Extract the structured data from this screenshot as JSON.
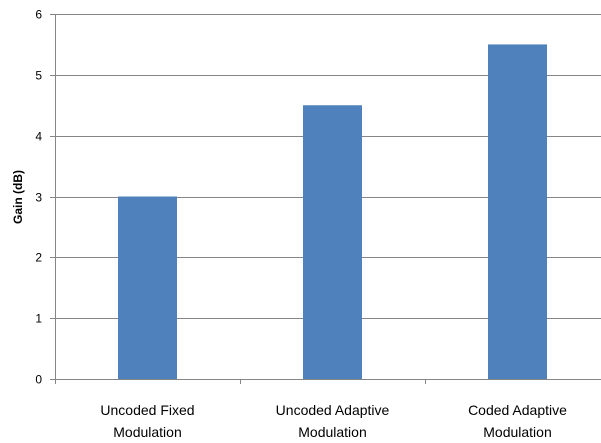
{
  "chart_data": {
    "type": "bar",
    "title": "",
    "xlabel": "",
    "ylabel": "Gain (dB)",
    "categories": [
      [
        "Uncoded Fixed",
        "Modulation"
      ],
      [
        "Uncoded Adaptive",
        "Modulation"
      ],
      [
        "Coded Adaptive",
        "Modulation"
      ]
    ],
    "values": [
      3,
      4.5,
      5.5
    ],
    "ylim": [
      0,
      6
    ],
    "yticks": [
      0,
      1,
      2,
      3,
      4,
      5,
      6
    ],
    "grid": true,
    "legend": "none",
    "colors": {
      "bar": "#4f81bd",
      "gridline": "#868686",
      "axis": "#868686"
    }
  }
}
